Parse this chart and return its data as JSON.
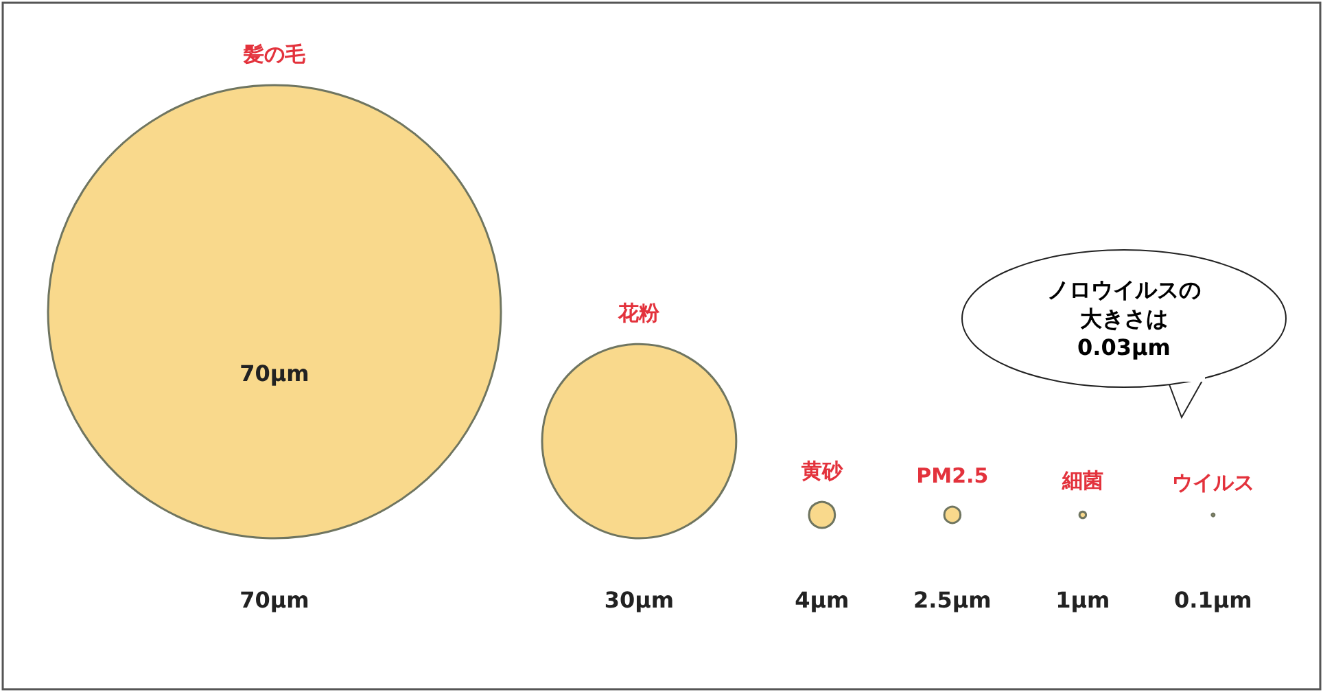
{
  "chart_data": {
    "type": "other",
    "categories": [
      "髪の毛",
      "花粉",
      "黄砂",
      "PM2.5",
      "細菌",
      "ウイルス"
    ],
    "values": [
      70,
      30,
      4,
      2.5,
      1,
      0.1
    ],
    "value_labels": [
      "70μm",
      "30μm",
      "4μm",
      "2.5μm",
      "1μm",
      "0.1μm"
    ],
    "color": "#f9d98c",
    "annotations": [
      "70μm",
      "ノロウイルスの",
      "大きさは",
      "0.03μm"
    ]
  }
}
